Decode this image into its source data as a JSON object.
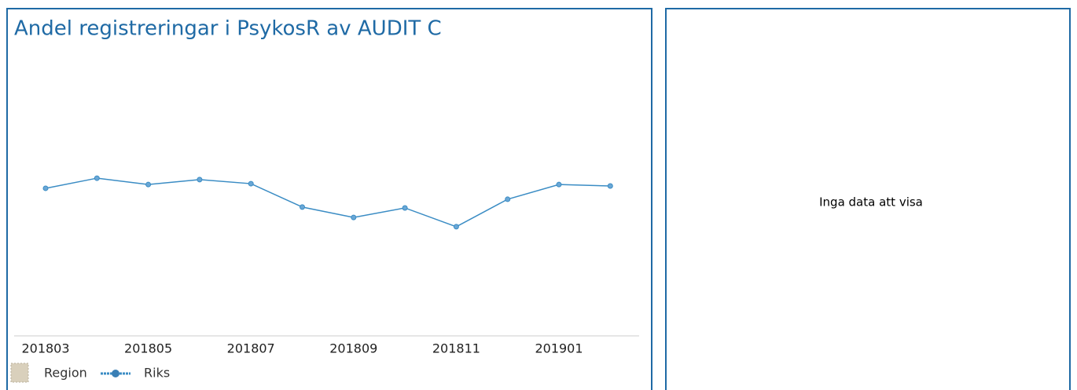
{
  "chart_data": {
    "type": "line",
    "title": "Andel registreringar i PsykosR av AUDIT C",
    "categories": [
      "201803",
      null,
      "201805",
      null,
      "201807",
      null,
      "201809",
      null,
      "201811",
      null,
      "201901",
      null
    ],
    "series": [
      {
        "name": "Region",
        "color": "#d9d0bc",
        "values": [
          null,
          null,
          null,
          null,
          null,
          null,
          null,
          null,
          null,
          null,
          null,
          null
        ]
      },
      {
        "name": "Riks",
        "color": "#3a8cc4",
        "values": [
          51.1,
          54.6,
          52.4,
          54.1,
          52.7,
          44.6,
          41.0,
          44.3,
          37.8,
          47.3,
          52.4,
          51.9
        ]
      }
    ],
    "ylim": [
      0,
      100
    ]
  },
  "right_panel": {
    "message": "Inga data att visa"
  }
}
